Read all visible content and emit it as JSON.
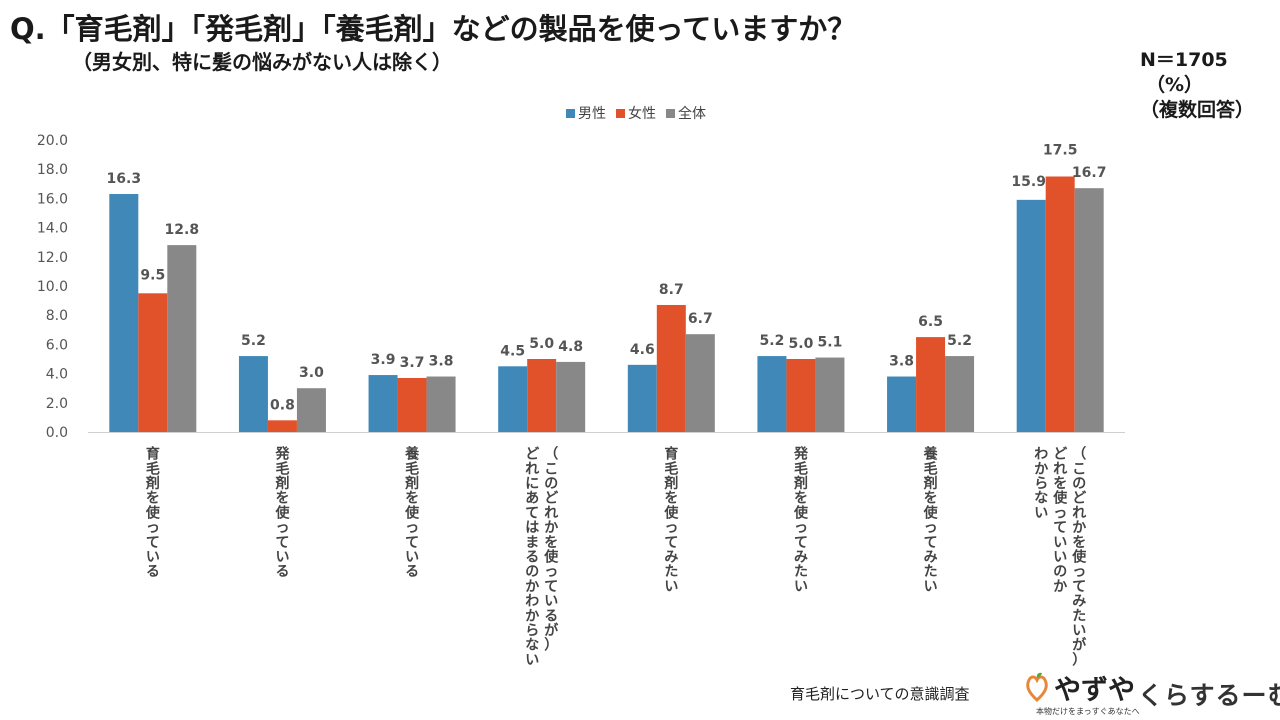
{
  "header": {
    "title": "Q.「育毛剤」「発毛剤」「養毛剤」などの製品を使っていますか？",
    "subtitle": "（男女別、特に髪の悩みがない人は除く）",
    "sample": "N＝1705",
    "unit": "（%）",
    "note": "（複数回答）"
  },
  "footer": {
    "survey_name": "育毛剤についての意識調査",
    "brand_yazuya": "やずや",
    "brand_yazuya_tagline": "本物だけをまっすぐあなたへ",
    "brand_kurasuru": "くらするーむ"
  },
  "chart_data": {
    "type": "bar",
    "categories": [
      "育毛剤を使っている",
      "発毛剤を使っている",
      "養毛剤を使っている",
      "（このどれかを使っているが）どれにあてはまるのかわからない",
      "育毛剤を使ってみたい",
      "発毛剤を使ってみたい",
      "養毛剤を使ってみたい",
      "（このどれかを使ってみたいが）どれを使っていいのかわからない"
    ],
    "category_label_lines": [
      [
        "育毛剤を使っている"
      ],
      [
        "発毛剤を使っている"
      ],
      [
        "養毛剤を使っている"
      ],
      [
        "（このどれかを使っているが）",
        "どれにあてはまるのかわからない"
      ],
      [
        "育毛剤を使ってみたい"
      ],
      [
        "発毛剤を使ってみたい"
      ],
      [
        "養毛剤を使ってみたい"
      ],
      [
        "（このどれかを使ってみたいが）",
        "どれを使っていいのか",
        "わからない"
      ]
    ],
    "series": [
      {
        "name": "男性",
        "color": "#3f88b8",
        "values": [
          16.3,
          5.2,
          3.9,
          4.5,
          4.6,
          5.2,
          3.8,
          15.9
        ]
      },
      {
        "name": "女性",
        "color": "#e2522a",
        "values": [
          9.5,
          0.8,
          3.7,
          5.0,
          8.7,
          5.0,
          6.5,
          17.5
        ]
      },
      {
        "name": "全体",
        "color": "#888888",
        "values": [
          12.8,
          3.0,
          3.8,
          4.8,
          6.7,
          5.1,
          5.2,
          16.7
        ]
      }
    ],
    "value_labels": [
      [
        "16.3",
        "5.2",
        "3.9",
        "4.5",
        "4.6",
        "5.2",
        "3.8",
        "15.9"
      ],
      [
        "9.5",
        "0.8",
        "3.7",
        "5.0",
        "8.7",
        "5.0",
        "6.5",
        "17.5"
      ],
      [
        "12.8",
        "3.0",
        "3.8",
        "4.8",
        "6.7",
        "5.1",
        "5.2",
        "16.7"
      ]
    ],
    "y_ticks": [
      "0.0",
      "2.0",
      "4.0",
      "6.0",
      "8.0",
      "10.0",
      "12.0",
      "14.0",
      "16.0",
      "18.0",
      "20.0"
    ],
    "ylim": [
      0,
      20
    ],
    "xlabel": "",
    "ylabel": "",
    "legend_position": "top-center",
    "grid": false
  }
}
